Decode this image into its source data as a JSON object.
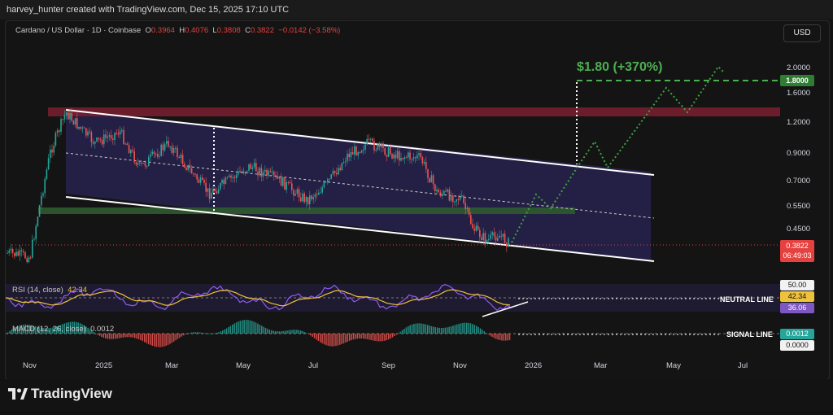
{
  "topbar": {
    "credit": "harvey_hunter created with TradingView.com, Dec 15, 2025 17:10 UTC"
  },
  "header": {
    "symbol": "Cardano / US Dollar · 1D · Coinbase",
    "o_label": "O",
    "o_value": "0.3964",
    "h_label": "H",
    "h_value": "0.4076",
    "l_label": "L",
    "l_value": "0.3808",
    "c_label": "C",
    "c_value": "0.3822",
    "change": "−0.0142 (−3.58%)",
    "currency_button": "USD"
  },
  "target_label": "$1.80 (+370%)",
  "price_axis": {
    "ticks": [
      "2.0000",
      "1.6000",
      "1.2000",
      "0.9000",
      "0.7000",
      "0.5500",
      "0.4500"
    ],
    "target_badge": "1.8000",
    "last_price": "0.3822",
    "countdown": "06:49:03"
  },
  "rsi": {
    "label": "RSI (14, close)",
    "value1": "42.34",
    "level_label": "50.00",
    "badge_value": "42.34",
    "badge_ma": "36.06",
    "annotation": "NEUTRAL LINE"
  },
  "macd": {
    "label": "MACD (12, 26, close)",
    "value": "0.0012",
    "badge_value": "0.0012",
    "badge_zero": "0.0000",
    "annotation": "SIGNAL LINE"
  },
  "time_axis": [
    "Nov",
    "2025",
    "Mar",
    "May",
    "Jul",
    "Sep",
    "Nov",
    "2026",
    "Mar",
    "May",
    "Jul"
  ],
  "colors": {
    "up": "#26a69a",
    "down": "#ef5350",
    "target": "#4caf50",
    "resistance": "#b2283a",
    "support": "#3b7a3b",
    "channel": "#2d2660",
    "rsi_line": "#8e5cf5",
    "rsi_ma": "#f0c23b"
  },
  "footer": {
    "brand": "TradingView"
  }
}
